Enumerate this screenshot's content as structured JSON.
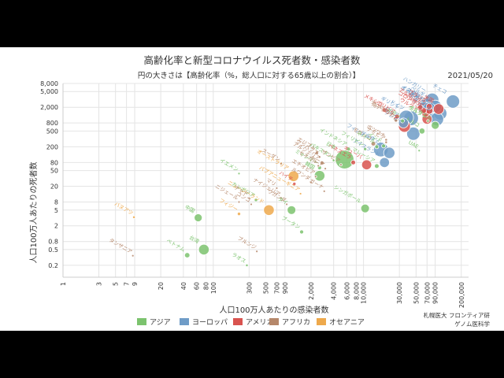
{
  "chart_data": {
    "type": "scatter",
    "title": "高齢化率と新型コロナウイルス死者数・感染者数",
    "subtitle": "円の大きさは【高齢化率（%，総人口に対する65歳以上の割合）】",
    "date": "2021/05/20",
    "xlabel": "人口100万人あたりの感染者数",
    "ylabel": "人口100万人あたりの死者数",
    "x_scale": "log",
    "y_scale": "log",
    "xlim": [
      1,
      250000
    ],
    "ylim": [
      0.1,
      8000
    ],
    "x_ticks": [
      {
        "v": 1,
        "label": "1"
      },
      {
        "v": 3,
        "label": "3"
      },
      {
        "v": 5,
        "label": "5"
      },
      {
        "v": 7,
        "label": "7"
      },
      {
        "v": 9,
        "label": "9"
      },
      {
        "v": 20,
        "label": "20"
      },
      {
        "v": 40,
        "label": "40"
      },
      {
        "v": 60,
        "label": "60"
      },
      {
        "v": 80,
        "label": "80"
      },
      {
        "v": 100,
        "label": "100"
      },
      {
        "v": 300,
        "label": "300"
      },
      {
        "v": 500,
        "label": "500"
      },
      {
        "v": 700,
        "label": "700"
      },
      {
        "v": 900,
        "label": "900"
      },
      {
        "v": 2000,
        "label": "2,000"
      },
      {
        "v": 4000,
        "label": "4,000"
      },
      {
        "v": 6000,
        "label": "6,000"
      },
      {
        "v": 8000,
        "label": "8,000"
      },
      {
        "v": 10000,
        "label": "10,000"
      },
      {
        "v": 30000,
        "label": "30,000"
      },
      {
        "v": 50000,
        "label": "50,000"
      },
      {
        "v": 70000,
        "label": "70,000"
      },
      {
        "v": 90000,
        "label": "90,000"
      },
      {
        "v": 200000,
        "label": "200,000"
      }
    ],
    "y_ticks": [
      {
        "v": 0.2,
        "label": "0.2"
      },
      {
        "v": 0.5,
        "label": "0.5"
      },
      {
        "v": 0.8,
        "label": "0.8"
      },
      {
        "v": 2,
        "label": "2"
      },
      {
        "v": 5,
        "label": "5"
      },
      {
        "v": 8,
        "label": "8"
      },
      {
        "v": 20,
        "label": "20"
      },
      {
        "v": 50,
        "label": "50"
      },
      {
        "v": 80,
        "label": "80"
      },
      {
        "v": 200,
        "label": "200"
      },
      {
        "v": 500,
        "label": "500"
      },
      {
        "v": 800,
        "label": "800"
      },
      {
        "v": 2000,
        "label": "2,000"
      },
      {
        "v": 5000,
        "label": "5,000"
      },
      {
        "v": 8000,
        "label": "8,000"
      }
    ],
    "grid": true,
    "legend_position": "bottom",
    "series": [
      {
        "name": "アジア",
        "color": "#7cc36e"
      },
      {
        "name": "ヨーロッパ",
        "color": "#6f9cc7"
      },
      {
        "name": "アメリカ",
        "color": "#d9534f"
      },
      {
        "name": "アフリカ",
        "color": "#b5876a"
      },
      {
        "name": "オセアニア",
        "color": "#eea94c"
      }
    ],
    "points": [
      {
        "label": "中国",
        "region": 0,
        "x": 63,
        "y": 3.2,
        "aging": 12
      },
      {
        "label": "台湾",
        "region": 0,
        "x": 75,
        "y": 0.5,
        "aging": 16
      },
      {
        "label": "ベトナム",
        "region": 0,
        "x": 45,
        "y": 0.36,
        "aging": 8
      },
      {
        "label": "ラオス",
        "region": 0,
        "x": 280,
        "y": 0.2,
        "aging": 4
      },
      {
        "label": "カンボジア",
        "region": 0,
        "x": 370,
        "y": 9,
        "aging": 5
      },
      {
        "label": "タイ",
        "region": 0,
        "x": 1100,
        "y": 5,
        "aging": 13
      },
      {
        "label": "ブータン",
        "region": 0,
        "x": 1500,
        "y": 1.4,
        "aging": 6
      },
      {
        "label": "日本",
        "region": 0,
        "x": 5600,
        "y": 95,
        "aging": 28
      },
      {
        "label": "シンガポール",
        "region": 0,
        "x": 10500,
        "y": 5.5,
        "aging": 13
      },
      {
        "label": "イエメン",
        "region": 0,
        "x": 220,
        "y": 42,
        "aging": 3
      },
      {
        "label": "インドネシア",
        "region": 0,
        "x": 6300,
        "y": 175,
        "aging": 6
      },
      {
        "label": "フィリピン",
        "region": 0,
        "x": 10500,
        "y": 175,
        "aging": 5
      },
      {
        "label": "インド",
        "region": 0,
        "x": 18500,
        "y": 210,
        "aging": 6
      },
      {
        "label": "ミャンマー",
        "region": 0,
        "x": 2600,
        "y": 59,
        "aging": 6
      },
      {
        "label": "マレーシア",
        "region": 0,
        "x": 15000,
        "y": 65,
        "aging": 7
      },
      {
        "label": "パキスタン",
        "region": 0,
        "x": 4000,
        "y": 90,
        "aging": 4
      },
      {
        "label": "イスラエル",
        "region": 0,
        "x": 90000,
        "y": 700,
        "aging": 12
      },
      {
        "label": "トルコ",
        "region": 0,
        "x": 60000,
        "y": 500,
        "aging": 9
      },
      {
        "label": "イラン",
        "region": 0,
        "x": 33000,
        "y": 900,
        "aging": 6
      },
      {
        "label": "ヨルダン",
        "region": 0,
        "x": 72000,
        "y": 900,
        "aging": 4
      },
      {
        "label": "UAE",
        "region": 0,
        "x": 55000,
        "y": 160,
        "aging": 1
      },
      {
        "label": "韓国",
        "region": 0,
        "x": 2600,
        "y": 37,
        "aging": 16
      },
      {
        "label": "ネパール",
        "region": 0,
        "x": 15000,
        "y": 200,
        "aging": 6
      },
      {
        "label": "英国",
        "region": 1,
        "x": 65000,
        "y": 1900,
        "aging": 19
      },
      {
        "label": "フランス",
        "region": 1,
        "x": 85000,
        "y": 1600,
        "aging": 21
      },
      {
        "label": "ドイツ",
        "region": 1,
        "x": 43000,
        "y": 1050,
        "aging": 22
      },
      {
        "label": "イタリア",
        "region": 1,
        "x": 70000,
        "y": 2100,
        "aging": 23
      },
      {
        "label": "スペイン",
        "region": 1,
        "x": 77000,
        "y": 1700,
        "aging": 20
      },
      {
        "label": "ベルギー",
        "region": 1,
        "x": 90000,
        "y": 2100,
        "aging": 19
      },
      {
        "label": "チェコ",
        "region": 1,
        "x": 155000,
        "y": 2800,
        "aging": 20
      },
      {
        "label": "ハンガリー",
        "region": 1,
        "x": 82000,
        "y": 3100,
        "aging": 20
      },
      {
        "label": "ポーランド",
        "region": 1,
        "x": 75000,
        "y": 1900,
        "aging": 18
      },
      {
        "label": "スウェーデン",
        "region": 1,
        "x": 105000,
        "y": 1400,
        "aging": 20
      },
      {
        "label": "オランダ",
        "region": 1,
        "x": 95000,
        "y": 1000,
        "aging": 20
      },
      {
        "label": "ロシア",
        "region": 1,
        "x": 34000,
        "y": 800,
        "aging": 15
      },
      {
        "label": "フィンランド",
        "region": 1,
        "x": 17000,
        "y": 170,
        "aging": 22
      },
      {
        "label": "ノルウェー",
        "region": 1,
        "x": 22000,
        "y": 140,
        "aging": 17
      },
      {
        "label": "デンマーク",
        "region": 1,
        "x": 46000,
        "y": 430,
        "aging": 20
      },
      {
        "label": "ギリシャ",
        "region": 1,
        "x": 37000,
        "y": 1100,
        "aging": 22
      },
      {
        "label": "アイスランド",
        "region": 1,
        "x": 19000,
        "y": 80,
        "aging": 15
      },
      {
        "label": "アルゼンチン",
        "region": 2,
        "x": 75000,
        "y": 1650,
        "aging": 11
      },
      {
        "label": "ブラジル",
        "region": 2,
        "x": 75000,
        "y": 2100,
        "aging": 9
      },
      {
        "label": "米国",
        "region": 2,
        "x": 100000,
        "y": 1800,
        "aging": 16
      },
      {
        "label": "メキシコ",
        "region": 2,
        "x": 19000,
        "y": 1700,
        "aging": 7
      },
      {
        "label": "ペルー",
        "region": 2,
        "x": 57000,
        "y": 2000,
        "aging": 8
      },
      {
        "label": "コロンビア",
        "region": 2,
        "x": 63000,
        "y": 1650,
        "aging": 9
      },
      {
        "label": "チリ",
        "region": 2,
        "x": 67000,
        "y": 1450,
        "aging": 12
      },
      {
        "label": "カナダ",
        "region": 2,
        "x": 35000,
        "y": 660,
        "aging": 18
      },
      {
        "label": "キューバ",
        "region": 2,
        "x": 11000,
        "y": 70,
        "aging": 15
      },
      {
        "label": "ハイチ",
        "region": 2,
        "x": 1200,
        "y": 23,
        "aging": 5
      },
      {
        "label": "ボリビア",
        "region": 2,
        "x": 28000,
        "y": 1150,
        "aging": 7
      },
      {
        "label": "ウルグアイ",
        "region": 2,
        "x": 70000,
        "y": 1000,
        "aging": 15
      },
      {
        "label": "ベネズエラ",
        "region": 2,
        "x": 7300,
        "y": 80,
        "aging": 7
      },
      {
        "label": "南アフリカ",
        "region": 3,
        "x": 27000,
        "y": 930,
        "aging": 5
      },
      {
        "label": "エジプト",
        "region": 3,
        "x": 2400,
        "y": 140,
        "aging": 5
      },
      {
        "label": "ナイジェリア",
        "region": 3,
        "x": 800,
        "y": 10,
        "aging": 3
      },
      {
        "label": "ケニア",
        "region": 3,
        "x": 3100,
        "y": 56,
        "aging": 2
      },
      {
        "label": "エチオピア",
        "region": 3,
        "x": 2300,
        "y": 35,
        "aging": 3
      },
      {
        "label": "チュニジア",
        "region": 3,
        "x": 27000,
        "y": 1000,
        "aging": 8
      },
      {
        "label": "モロッコ",
        "region": 3,
        "x": 13500,
        "y": 240,
        "aging": 7
      },
      {
        "label": "アルジェリア",
        "region": 3,
        "x": 2800,
        "y": 78,
        "aging": 6
      },
      {
        "label": "タンザニア",
        "region": 3,
        "x": 8.5,
        "y": 0.35,
        "aging": 3
      },
      {
        "label": "ガーナ",
        "region": 3,
        "x": 3000,
        "y": 15,
        "aging": 3
      },
      {
        "label": "ジンバブエ",
        "region": 3,
        "x": 2600,
        "y": 110,
        "aging": 3
      },
      {
        "label": "コンゴ",
        "region": 3,
        "x": 320,
        "y": 7,
        "aging": 3
      },
      {
        "label": "ウガンダ",
        "region": 3,
        "x": 950,
        "y": 7,
        "aging": 2
      },
      {
        "label": "ニジェール",
        "region": 3,
        "x": 220,
        "y": 8,
        "aging": 3
      },
      {
        "label": "チャド",
        "region": 3,
        "x": 300,
        "y": 10,
        "aging": 2
      },
      {
        "label": "マリ",
        "region": 3,
        "x": 700,
        "y": 18,
        "aging": 3
      },
      {
        "label": "スーダン",
        "region": 3,
        "x": 800,
        "y": 75,
        "aging": 4
      },
      {
        "label": "ルワンダ",
        "region": 3,
        "x": 2000,
        "y": 25,
        "aging": 3
      },
      {
        "label": "ザンビア",
        "region": 3,
        "x": 5000,
        "y": 70,
        "aging": 2
      },
      {
        "label": "ボツワナ",
        "region": 3,
        "x": 20000,
        "y": 300,
        "aging": 4
      },
      {
        "label": "ナミビア",
        "region": 3,
        "x": 20000,
        "y": 260,
        "aging": 4
      },
      {
        "label": "セネガル",
        "region": 3,
        "x": 2500,
        "y": 66,
        "aging": 3
      },
      {
        "label": "ブルンジ",
        "region": 3,
        "x": 380,
        "y": 0.45,
        "aging": 2
      },
      {
        "label": "オーストラリア",
        "region": 4,
        "x": 1170,
        "y": 36,
        "aging": 16
      },
      {
        "label": "ニュージーランド",
        "region": 4,
        "x": 550,
        "y": 5,
        "aging": 16
      },
      {
        "label": "パプアニューギニア",
        "region": 4,
        "x": 1450,
        "y": 13,
        "aging": 3
      },
      {
        "label": "フィジー",
        "region": 4,
        "x": 220,
        "y": 4,
        "aging": 5
      },
      {
        "label": "バヌアツ",
        "region": 4,
        "x": 8.8,
        "y": 3.3,
        "aging": 4
      }
    ]
  },
  "credit": {
    "line1": "札幌医大 フロンティア研",
    "line2": "ゲノム医科学"
  }
}
